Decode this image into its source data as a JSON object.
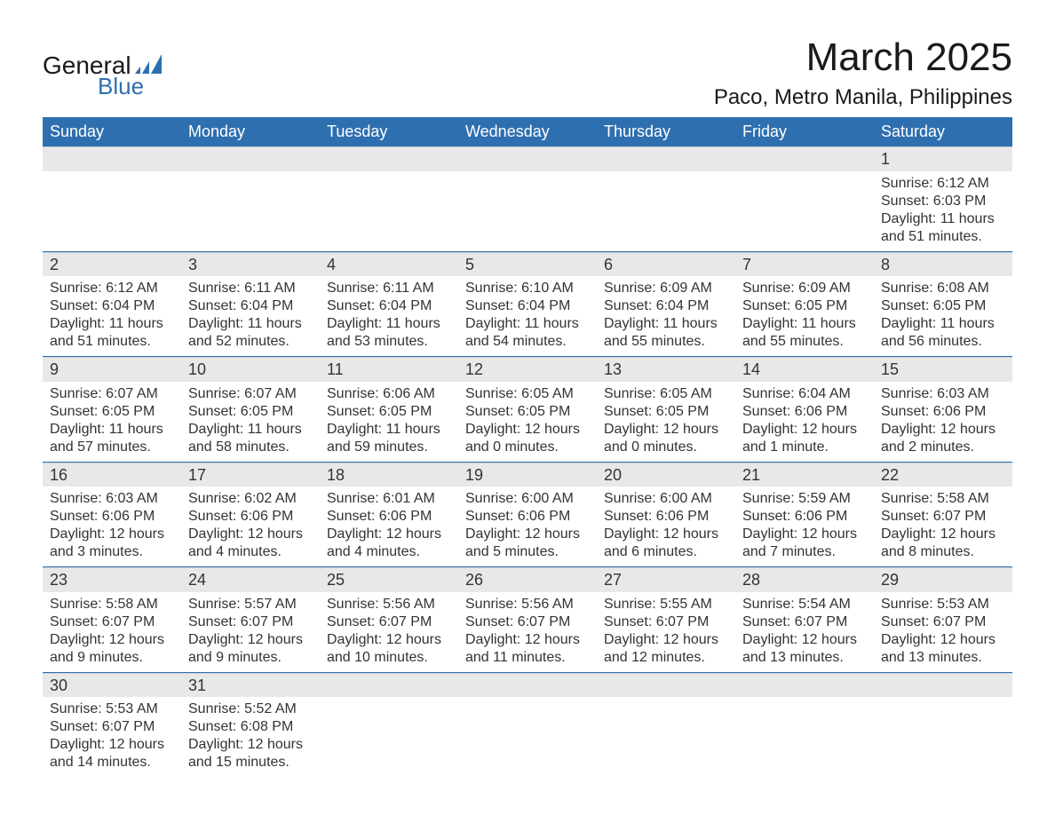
{
  "brand": {
    "name_top": "General",
    "name_bottom": "Blue",
    "accent_color": "#2e6fb0"
  },
  "title": "March 2025",
  "location": "Paco, Metro Manila, Philippines",
  "calendar": {
    "type": "table",
    "header_bg": "#2e6fb0",
    "header_text_color": "#ffffff",
    "daynum_bg": "#e8e8e8",
    "row_divider_color": "#2e6fb0",
    "text_color": "#333333",
    "background_color": "#ffffff",
    "font_family": "Arial",
    "header_fontsize": 18,
    "body_fontsize": 16,
    "title_fontsize": 44,
    "location_fontsize": 24,
    "columns": [
      "Sunday",
      "Monday",
      "Tuesday",
      "Wednesday",
      "Thursday",
      "Friday",
      "Saturday"
    ],
    "weeks": [
      [
        {
          "day": "",
          "lines": []
        },
        {
          "day": "",
          "lines": []
        },
        {
          "day": "",
          "lines": []
        },
        {
          "day": "",
          "lines": []
        },
        {
          "day": "",
          "lines": []
        },
        {
          "day": "",
          "lines": []
        },
        {
          "day": "1",
          "lines": [
            "Sunrise: 6:12 AM",
            "Sunset: 6:03 PM",
            "Daylight: 11 hours and 51 minutes."
          ]
        }
      ],
      [
        {
          "day": "2",
          "lines": [
            "Sunrise: 6:12 AM",
            "Sunset: 6:04 PM",
            "Daylight: 11 hours and 51 minutes."
          ]
        },
        {
          "day": "3",
          "lines": [
            "Sunrise: 6:11 AM",
            "Sunset: 6:04 PM",
            "Daylight: 11 hours and 52 minutes."
          ]
        },
        {
          "day": "4",
          "lines": [
            "Sunrise: 6:11 AM",
            "Sunset: 6:04 PM",
            "Daylight: 11 hours and 53 minutes."
          ]
        },
        {
          "day": "5",
          "lines": [
            "Sunrise: 6:10 AM",
            "Sunset: 6:04 PM",
            "Daylight: 11 hours and 54 minutes."
          ]
        },
        {
          "day": "6",
          "lines": [
            "Sunrise: 6:09 AM",
            "Sunset: 6:04 PM",
            "Daylight: 11 hours and 55 minutes."
          ]
        },
        {
          "day": "7",
          "lines": [
            "Sunrise: 6:09 AM",
            "Sunset: 6:05 PM",
            "Daylight: 11 hours and 55 minutes."
          ]
        },
        {
          "day": "8",
          "lines": [
            "Sunrise: 6:08 AM",
            "Sunset: 6:05 PM",
            "Daylight: 11 hours and 56 minutes."
          ]
        }
      ],
      [
        {
          "day": "9",
          "lines": [
            "Sunrise: 6:07 AM",
            "Sunset: 6:05 PM",
            "Daylight: 11 hours and 57 minutes."
          ]
        },
        {
          "day": "10",
          "lines": [
            "Sunrise: 6:07 AM",
            "Sunset: 6:05 PM",
            "Daylight: 11 hours and 58 minutes."
          ]
        },
        {
          "day": "11",
          "lines": [
            "Sunrise: 6:06 AM",
            "Sunset: 6:05 PM",
            "Daylight: 11 hours and 59 minutes."
          ]
        },
        {
          "day": "12",
          "lines": [
            "Sunrise: 6:05 AM",
            "Sunset: 6:05 PM",
            "Daylight: 12 hours and 0 minutes."
          ]
        },
        {
          "day": "13",
          "lines": [
            "Sunrise: 6:05 AM",
            "Sunset: 6:05 PM",
            "Daylight: 12 hours and 0 minutes."
          ]
        },
        {
          "day": "14",
          "lines": [
            "Sunrise: 6:04 AM",
            "Sunset: 6:06 PM",
            "Daylight: 12 hours and 1 minute."
          ]
        },
        {
          "day": "15",
          "lines": [
            "Sunrise: 6:03 AM",
            "Sunset: 6:06 PM",
            "Daylight: 12 hours and 2 minutes."
          ]
        }
      ],
      [
        {
          "day": "16",
          "lines": [
            "Sunrise: 6:03 AM",
            "Sunset: 6:06 PM",
            "Daylight: 12 hours and 3 minutes."
          ]
        },
        {
          "day": "17",
          "lines": [
            "Sunrise: 6:02 AM",
            "Sunset: 6:06 PM",
            "Daylight: 12 hours and 4 minutes."
          ]
        },
        {
          "day": "18",
          "lines": [
            "Sunrise: 6:01 AM",
            "Sunset: 6:06 PM",
            "Daylight: 12 hours and 4 minutes."
          ]
        },
        {
          "day": "19",
          "lines": [
            "Sunrise: 6:00 AM",
            "Sunset: 6:06 PM",
            "Daylight: 12 hours and 5 minutes."
          ]
        },
        {
          "day": "20",
          "lines": [
            "Sunrise: 6:00 AM",
            "Sunset: 6:06 PM",
            "Daylight: 12 hours and 6 minutes."
          ]
        },
        {
          "day": "21",
          "lines": [
            "Sunrise: 5:59 AM",
            "Sunset: 6:06 PM",
            "Daylight: 12 hours and 7 minutes."
          ]
        },
        {
          "day": "22",
          "lines": [
            "Sunrise: 5:58 AM",
            "Sunset: 6:07 PM",
            "Daylight: 12 hours and 8 minutes."
          ]
        }
      ],
      [
        {
          "day": "23",
          "lines": [
            "Sunrise: 5:58 AM",
            "Sunset: 6:07 PM",
            "Daylight: 12 hours and 9 minutes."
          ]
        },
        {
          "day": "24",
          "lines": [
            "Sunrise: 5:57 AM",
            "Sunset: 6:07 PM",
            "Daylight: 12 hours and 9 minutes."
          ]
        },
        {
          "day": "25",
          "lines": [
            "Sunrise: 5:56 AM",
            "Sunset: 6:07 PM",
            "Daylight: 12 hours and 10 minutes."
          ]
        },
        {
          "day": "26",
          "lines": [
            "Sunrise: 5:56 AM",
            "Sunset: 6:07 PM",
            "Daylight: 12 hours and 11 minutes."
          ]
        },
        {
          "day": "27",
          "lines": [
            "Sunrise: 5:55 AM",
            "Sunset: 6:07 PM",
            "Daylight: 12 hours and 12 minutes."
          ]
        },
        {
          "day": "28",
          "lines": [
            "Sunrise: 5:54 AM",
            "Sunset: 6:07 PM",
            "Daylight: 12 hours and 13 minutes."
          ]
        },
        {
          "day": "29",
          "lines": [
            "Sunrise: 5:53 AM",
            "Sunset: 6:07 PM",
            "Daylight: 12 hours and 13 minutes."
          ]
        }
      ],
      [
        {
          "day": "30",
          "lines": [
            "Sunrise: 5:53 AM",
            "Sunset: 6:07 PM",
            "Daylight: 12 hours and 14 minutes."
          ]
        },
        {
          "day": "31",
          "lines": [
            "Sunrise: 5:52 AM",
            "Sunset: 6:08 PM",
            "Daylight: 12 hours and 15 minutes."
          ]
        },
        {
          "day": "",
          "lines": []
        },
        {
          "day": "",
          "lines": []
        },
        {
          "day": "",
          "lines": []
        },
        {
          "day": "",
          "lines": []
        },
        {
          "day": "",
          "lines": []
        }
      ]
    ]
  }
}
